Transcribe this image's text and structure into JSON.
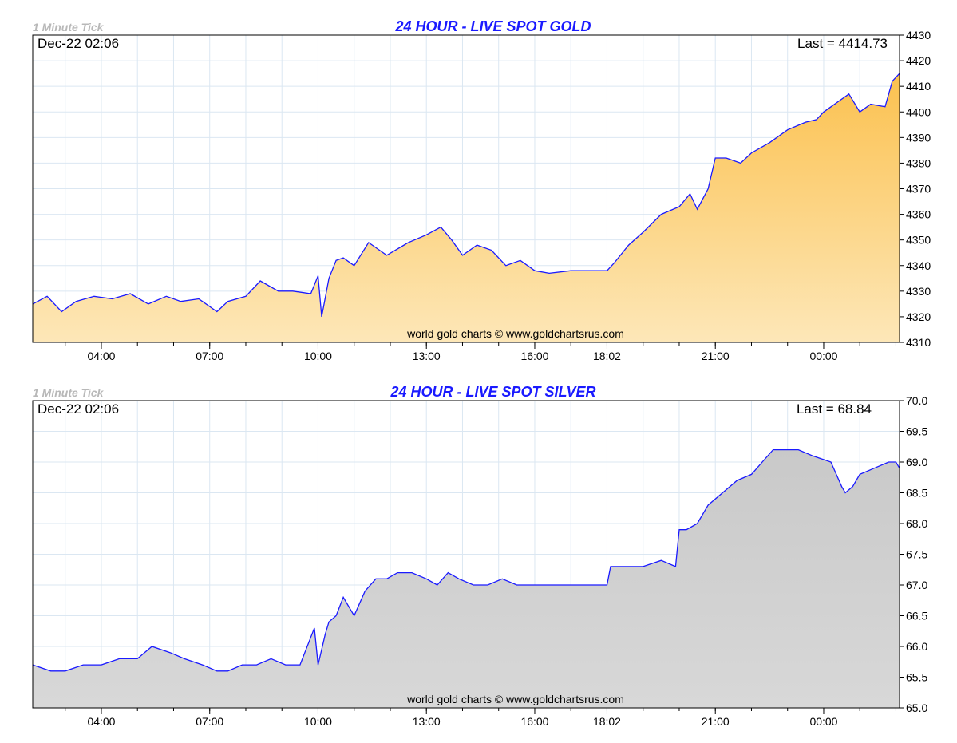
{
  "colors": {
    "line": "#1a1aff",
    "grid": "#dbe7f2",
    "gold_fill_top": "#fbc14f",
    "gold_fill_bottom": "#fde7b8",
    "silver_fill_top": "#c9c9c9",
    "silver_fill_bottom": "#d8d8d8"
  },
  "chart_data": [
    {
      "type": "area",
      "title": "24 HOUR - LIVE SPOT GOLD",
      "subtitle": "1 Minute Tick",
      "timestamp": "Dec-22  02:06",
      "last_label": "Last = 4414.73",
      "credit": "world gold charts © www.goldchartsrus.com",
      "x_ticks": [
        "04:00",
        "07:00",
        "10:00",
        "13:00",
        "16:00",
        "18:02",
        "21:00",
        "00:00"
      ],
      "x_tick_pos": [
        3,
        6,
        9,
        12,
        15,
        17,
        20,
        23
      ],
      "xlim": [
        1.1,
        25.1
      ],
      "ylim": [
        4310,
        4430
      ],
      "y_ticks": [
        "4310",
        "4320",
        "4330",
        "4340",
        "4350",
        "4360",
        "4370",
        "4380",
        "4390",
        "4400",
        "4410",
        "4420",
        "4430"
      ],
      "grid": true,
      "x": [
        1.1,
        1.5,
        1.9,
        2.3,
        2.8,
        3.3,
        3.8,
        4.3,
        4.8,
        5.2,
        5.7,
        6.2,
        6.5,
        7.0,
        7.4,
        7.9,
        8.3,
        8.8,
        9.0,
        9.1,
        9.3,
        9.5,
        9.7,
        10.0,
        10.4,
        10.9,
        11.5,
        12.0,
        12.4,
        12.7,
        13.0,
        13.4,
        13.8,
        14.2,
        14.6,
        15.0,
        15.4,
        16.0,
        16.5,
        17.0,
        17.2,
        17.6,
        18.0,
        18.5,
        19.0,
        19.3,
        19.5,
        19.8,
        20.0,
        20.3,
        20.7,
        21.0,
        21.5,
        22.0,
        22.5,
        22.8,
        23.0,
        23.4,
        23.7,
        24.0,
        24.3,
        24.7,
        24.9,
        25.1
      ],
      "y": [
        4325,
        4328,
        4322,
        4326,
        4328,
        4327,
        4329,
        4325,
        4328,
        4326,
        4327,
        4322,
        4326,
        4328,
        4334,
        4330,
        4330,
        4329,
        4336,
        4320,
        4335,
        4342,
        4343,
        4340,
        4349,
        4344,
        4349,
        4352,
        4355,
        4350,
        4344,
        4348,
        4346,
        4340,
        4342,
        4338,
        4337,
        4338,
        4338,
        4338,
        4341,
        4348,
        4353,
        4360,
        4363,
        4368,
        4362,
        4370,
        4382,
        4382,
        4380,
        4384,
        4388,
        4393,
        4396,
        4397,
        4400,
        4404,
        4407,
        4400,
        4403,
        4402,
        4412,
        4415
      ]
    },
    {
      "type": "area",
      "title": "24 HOUR - LIVE SPOT SILVER",
      "subtitle": "1 Minute Tick",
      "timestamp": "Dec-22  02:06",
      "last_label": "Last = 68.84",
      "credit": "world gold charts © www.goldchartsrus.com",
      "x_ticks": [
        "04:00",
        "07:00",
        "10:00",
        "13:00",
        "16:00",
        "18:02",
        "21:00",
        "00:00"
      ],
      "x_tick_pos": [
        3,
        6,
        9,
        12,
        15,
        17,
        20,
        23
      ],
      "xlim": [
        1.1,
        25.1
      ],
      "ylim": [
        65.0,
        70.0
      ],
      "y_ticks": [
        "65.0",
        "65.5",
        "66.0",
        "66.5",
        "67.0",
        "67.5",
        "68.0",
        "68.5",
        "69.0",
        "69.5",
        "70.0"
      ],
      "grid": true,
      "x": [
        1.1,
        1.6,
        2.0,
        2.5,
        3.0,
        3.5,
        4.0,
        4.4,
        4.9,
        5.3,
        5.8,
        6.2,
        6.5,
        6.9,
        7.3,
        7.7,
        8.1,
        8.5,
        8.9,
        9.0,
        9.2,
        9.3,
        9.5,
        9.7,
        10.0,
        10.3,
        10.6,
        10.9,
        11.2,
        11.6,
        12.0,
        12.3,
        12.6,
        12.9,
        13.3,
        13.7,
        14.1,
        14.5,
        15.0,
        15.5,
        16.0,
        16.5,
        17.0,
        17.1,
        17.5,
        18.0,
        18.5,
        18.9,
        19.0,
        19.2,
        19.5,
        19.8,
        20.2,
        20.6,
        21.0,
        21.3,
        21.6,
        21.9,
        22.3,
        22.7,
        23.2,
        23.5,
        23.6,
        23.8,
        24.0,
        24.4,
        24.8,
        25.0,
        25.1
      ],
      "y": [
        65.7,
        65.6,
        65.6,
        65.7,
        65.7,
        65.8,
        65.8,
        66.0,
        65.9,
        65.8,
        65.7,
        65.6,
        65.6,
        65.7,
        65.7,
        65.8,
        65.7,
        65.7,
        66.3,
        65.7,
        66.2,
        66.4,
        66.5,
        66.8,
        66.5,
        66.9,
        67.1,
        67.1,
        67.2,
        67.2,
        67.1,
        67.0,
        67.2,
        67.1,
        67.0,
        67.0,
        67.1,
        67.0,
        67.0,
        67.0,
        67.0,
        67.0,
        67.0,
        67.3,
        67.3,
        67.3,
        67.4,
        67.3,
        67.9,
        67.9,
        68.0,
        68.3,
        68.5,
        68.7,
        68.8,
        69.0,
        69.2,
        69.2,
        69.2,
        69.1,
        69.0,
        68.6,
        68.5,
        68.6,
        68.8,
        68.9,
        69.0,
        69.0,
        68.9
      ]
    }
  ]
}
